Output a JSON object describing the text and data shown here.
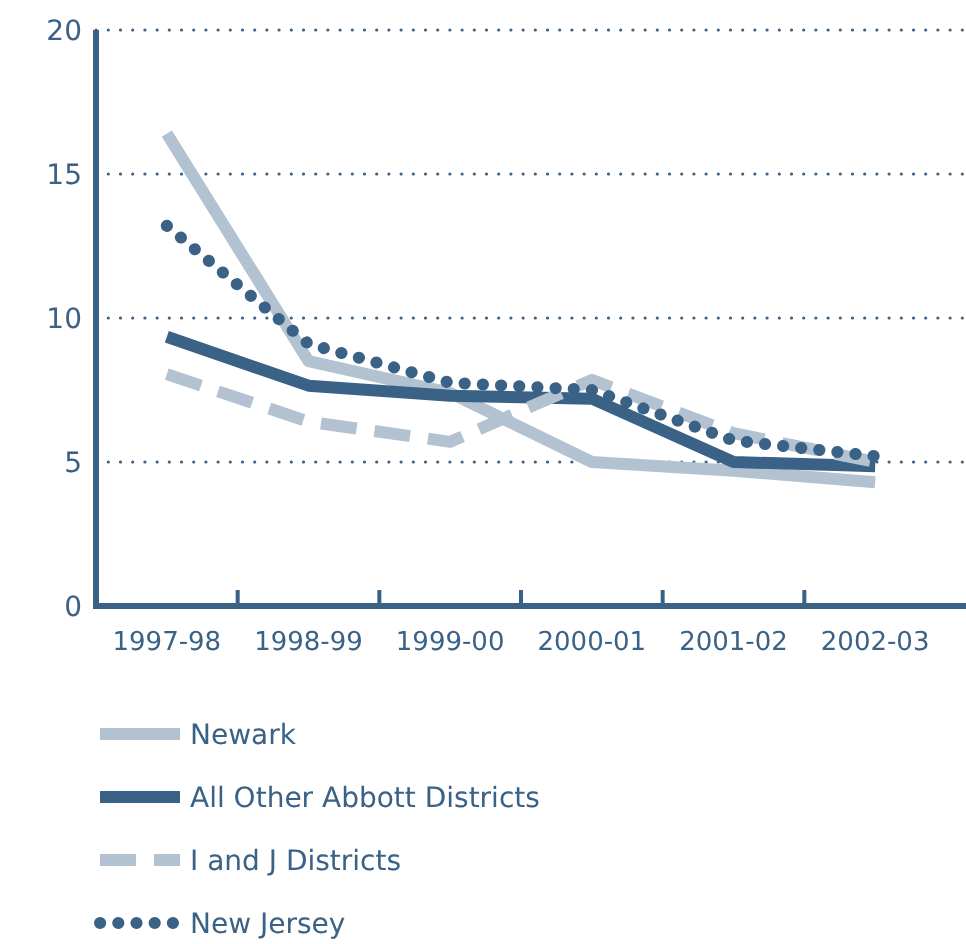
{
  "chart_data": {
    "type": "line",
    "categories": [
      "1997-98",
      "1998-99",
      "1999-00",
      "2000-01",
      "2001-02",
      "2002-03"
    ],
    "ylim": [
      0,
      20
    ],
    "yticks": [
      0,
      5,
      10,
      15,
      20
    ],
    "grid": "y",
    "legend": "bottom",
    "series": [
      {
        "name": "Newark",
        "color": "#b3c2d1",
        "line_style": "solid",
        "values": [
          16.4,
          8.5,
          7.4,
          5.0,
          4.7,
          4.3
        ]
      },
      {
        "name": "All Other Abbott Districts",
        "color": "#3a6186",
        "line_style": "solid",
        "values": [
          9.35,
          7.65,
          7.3,
          7.2,
          5.0,
          4.85
        ]
      },
      {
        "name": "I and J Districts",
        "color": "#b3c2d1",
        "line_style": "dashed",
        "values": [
          8.05,
          6.4,
          5.7,
          7.85,
          6.0,
          5.0
        ]
      },
      {
        "name": "New Jersey",
        "color": "#3a6186",
        "line_style": "dotted",
        "values": [
          13.2,
          9.1,
          7.75,
          7.5,
          5.75,
          5.2
        ]
      }
    ]
  }
}
